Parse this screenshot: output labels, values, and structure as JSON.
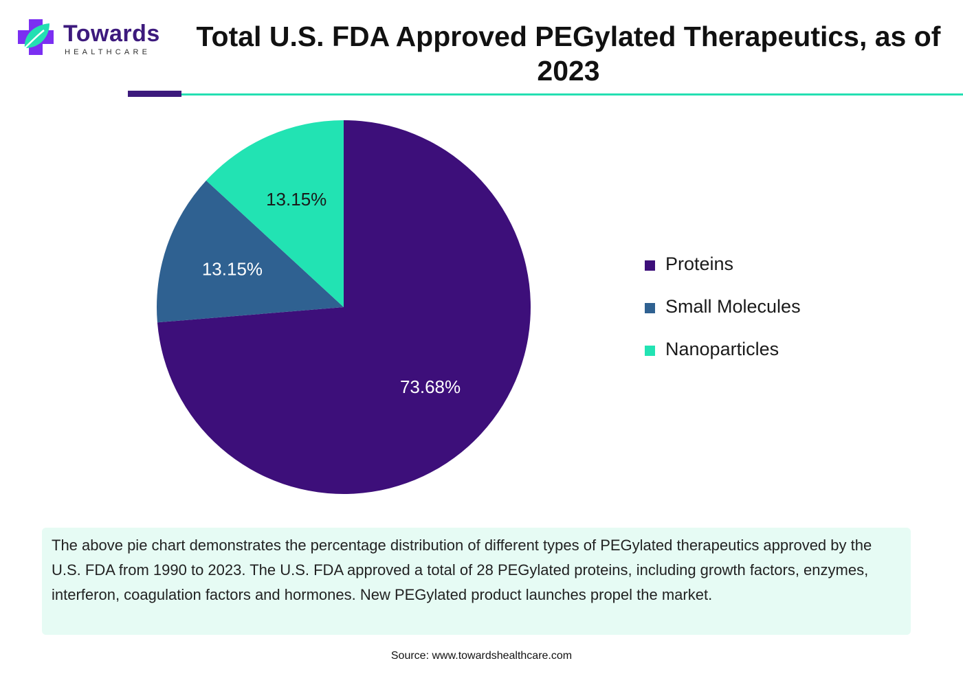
{
  "logo": {
    "word": "Towards",
    "sub": "HEALTHCARE"
  },
  "header": {
    "title": "Total U.S. FDA Approved PEGylated Therapeutics, as of 2023"
  },
  "colors": {
    "primary": "#3d1a7d",
    "accent": "#24dfb2",
    "panel": "#e6fbf4"
  },
  "chart_data": {
    "type": "pie",
    "title": "Total U.S. FDA Approved PEGylated Therapeutics, as of 2023",
    "legend_position": "right",
    "slices": [
      {
        "name": "Proteins",
        "value": 73.68,
        "label": "73.68%",
        "color": "#3d0f7a"
      },
      {
        "name": "Small Molecules",
        "value": 13.15,
        "label": "13.15%",
        "color": "#2f6191"
      },
      {
        "name": "Nanoparticles",
        "value": 13.15,
        "label": "13.15%",
        "color": "#22e3b3"
      }
    ]
  },
  "description": "The above pie chart demonstrates the percentage distribution of different types of PEGylated therapeutics approved by the U.S. FDA from 1990 to 2023. The U.S. FDA approved a total of 28 PEGylated proteins, including growth factors, enzymes, interferon, coagulation factors and hormones. New PEGylated product launches propel the market.",
  "source": "Source: www.towardshealthcare.com"
}
